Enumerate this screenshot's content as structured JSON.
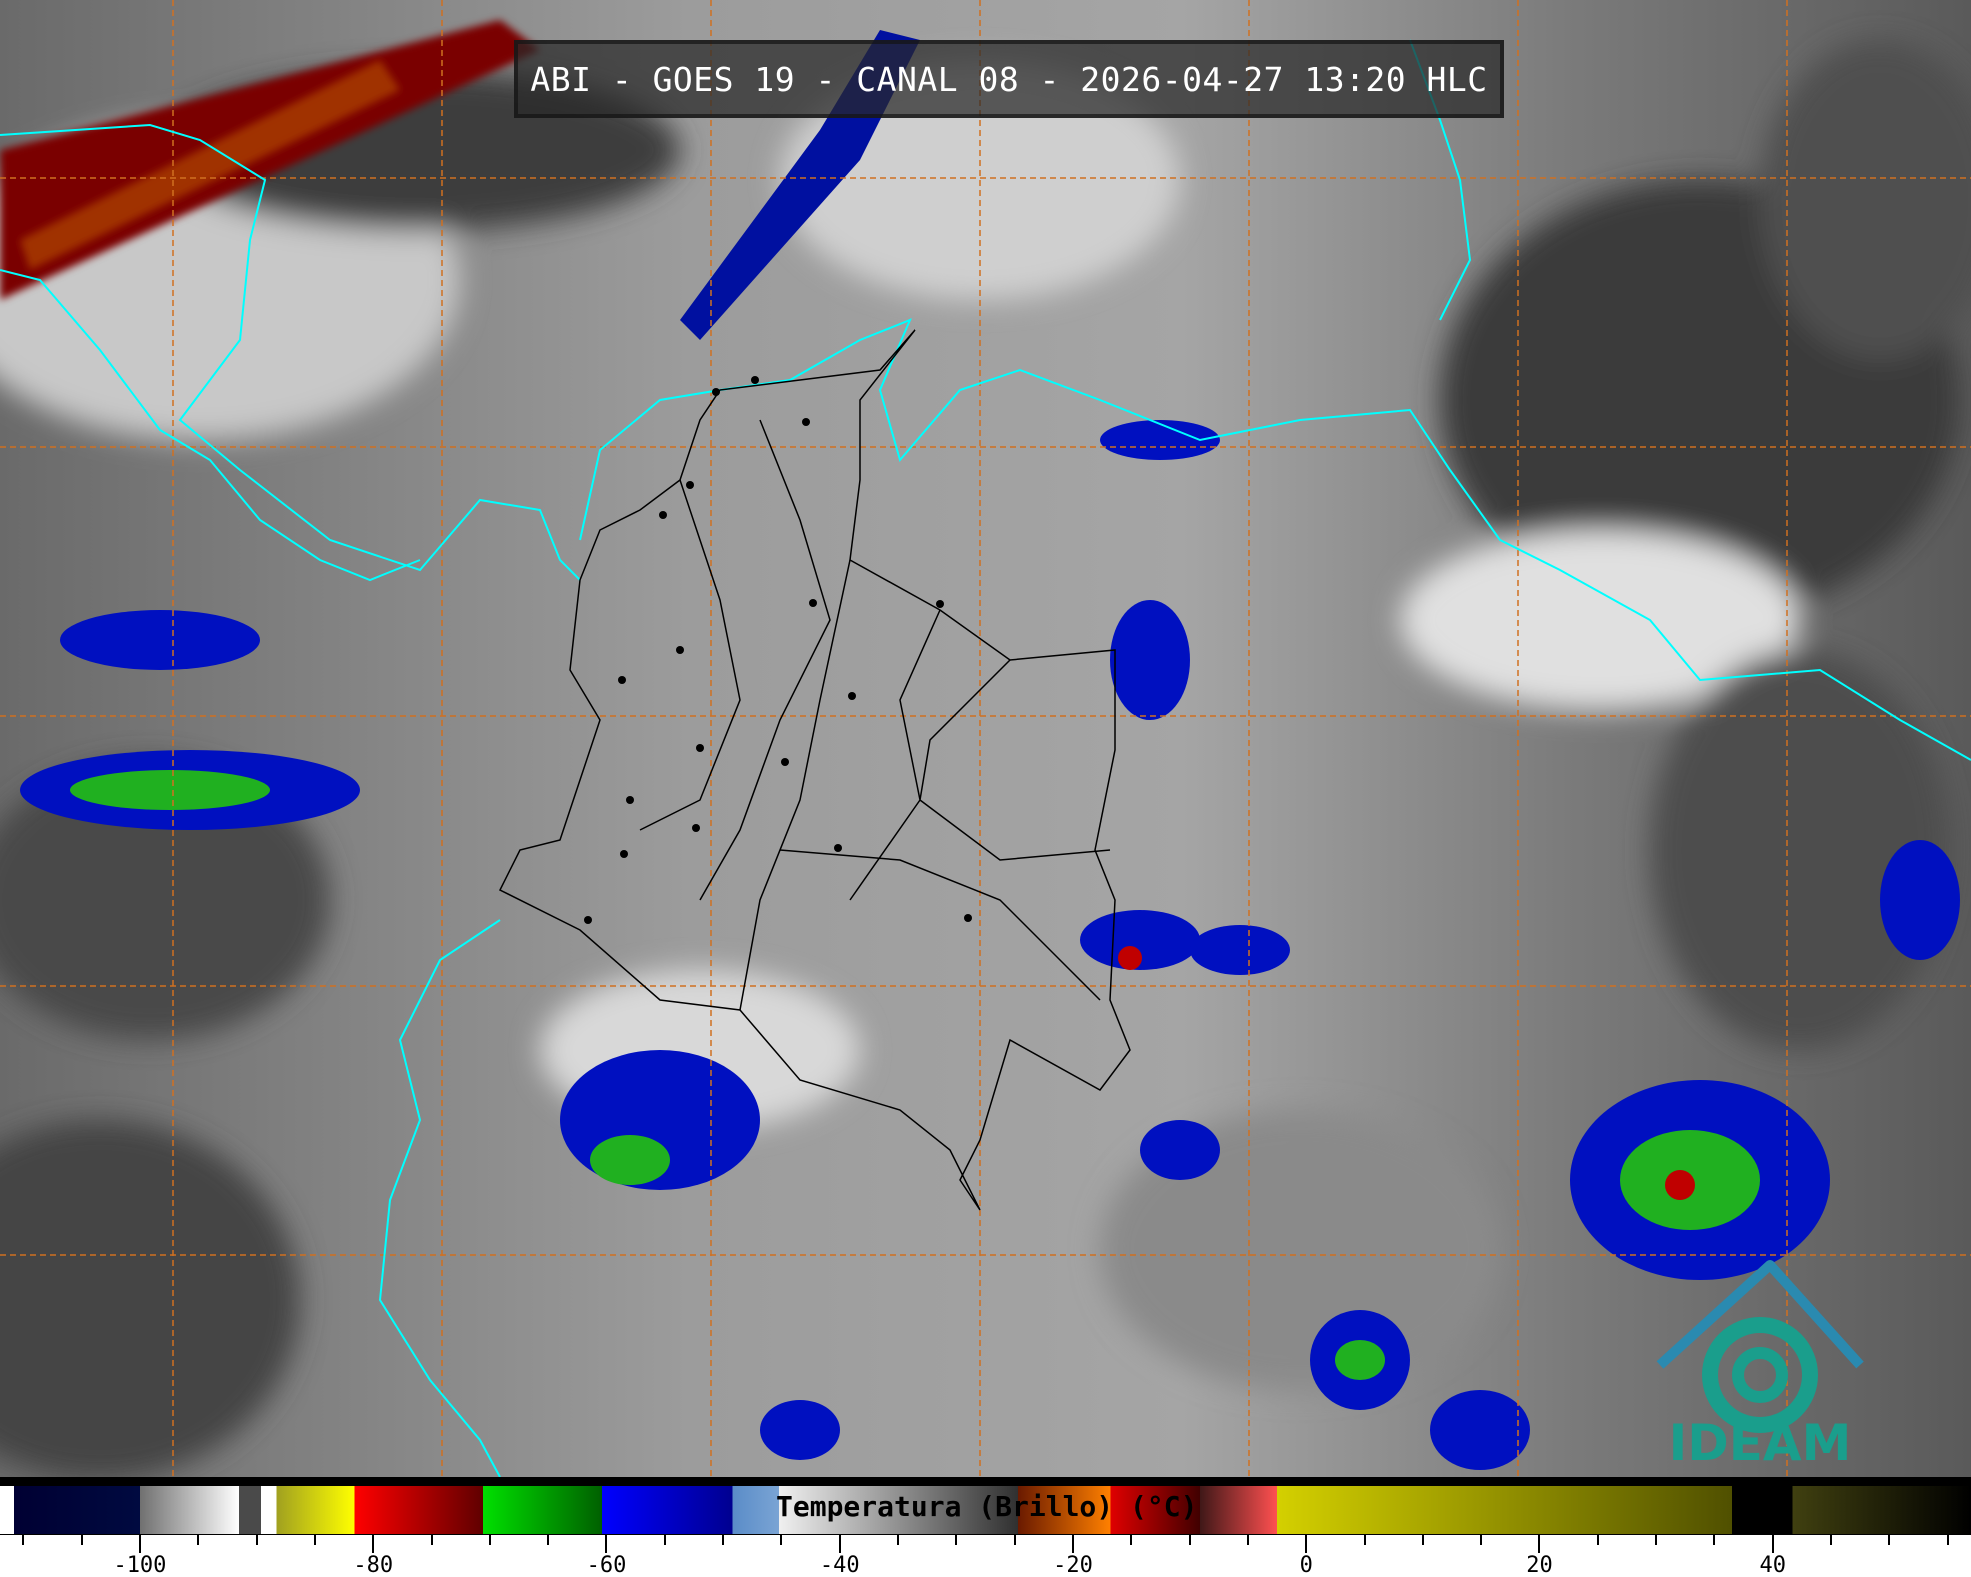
{
  "title": "ABI - GOES 19 - CANAL 08 - 2026-04-27 13:20 HLC",
  "colorbar": {
    "label": "Temperatura (Brillo) (°C)",
    "range": [
      -112,
      57
    ],
    "major_ticks": [
      -100,
      -80,
      -60,
      -40,
      -20,
      0,
      20,
      40
    ],
    "tick_labels": [
      "-100",
      "-80",
      "-60",
      "-40",
      "-20",
      "0",
      "20",
      "40"
    ],
    "minor_step": 5,
    "stops": [
      {
        "t": -112,
        "color": "#ffffff"
      },
      {
        "t": -110.8,
        "color": "#ffffff"
      },
      {
        "t": -110.8,
        "color": "#000033"
      },
      {
        "t": -100,
        "color": "#000a40"
      },
      {
        "t": -100,
        "color": "#707070"
      },
      {
        "t": -91.5,
        "color": "#ffffff"
      },
      {
        "t": -91.5,
        "color": "#4a4a4a"
      },
      {
        "t": -89.6,
        "color": "#4a4a4a"
      },
      {
        "t": -89.6,
        "color": "#ffffff"
      },
      {
        "t": -88.3,
        "color": "#ffffff"
      },
      {
        "t": -88.3,
        "color": "#a0a020"
      },
      {
        "t": -81.6,
        "color": "#ffff00"
      },
      {
        "t": -81.6,
        "color": "#ff0000"
      },
      {
        "t": -70.6,
        "color": "#600000"
      },
      {
        "t": -70.6,
        "color": "#00e000"
      },
      {
        "t": -60.4,
        "color": "#006000"
      },
      {
        "t": -60.4,
        "color": "#0000ff"
      },
      {
        "t": -49.2,
        "color": "#000090"
      },
      {
        "t": -49.2,
        "color": "#5a8cc8"
      },
      {
        "t": -45.2,
        "color": "#7aa4d4"
      },
      {
        "t": -45.2,
        "color": "#f0f0f0"
      },
      {
        "t": -24.7,
        "color": "#303030"
      },
      {
        "t": -24.7,
        "color": "#6a1a00"
      },
      {
        "t": -16.8,
        "color": "#ff8000"
      },
      {
        "t": -16.8,
        "color": "#e00000"
      },
      {
        "t": -9.1,
        "color": "#400000"
      },
      {
        "t": -9.1,
        "color": "#401818"
      },
      {
        "t": -2.5,
        "color": "#ff5050"
      },
      {
        "t": -2.5,
        "color": "#d4d000"
      },
      {
        "t": 36.5,
        "color": "#505000"
      },
      {
        "t": 36.5,
        "color": "#000000"
      },
      {
        "t": 41.7,
        "color": "#000000"
      },
      {
        "t": 41.7,
        "color": "#404010"
      },
      {
        "t": 57,
        "color": "#000000"
      }
    ]
  },
  "logo": {
    "text": "IDEAM",
    "color": "#1a9e8c"
  },
  "map": {
    "coastline_color": "#00ffff",
    "border_color": "#000000",
    "graticule_color": "#d07020"
  }
}
